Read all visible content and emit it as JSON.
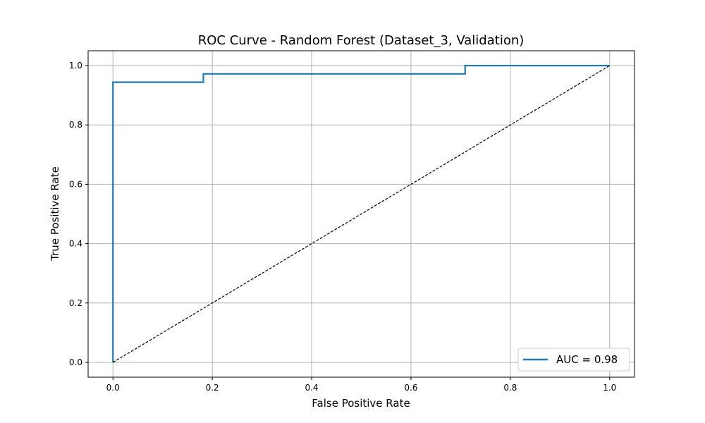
{
  "chart_data": {
    "type": "line",
    "title": "ROC Curve - Random Forest (Dataset_3, Validation)",
    "xlabel": "False Positive Rate",
    "ylabel": "True Positive Rate",
    "xlim": [
      -0.05,
      1.05
    ],
    "ylim": [
      -0.05,
      1.05
    ],
    "xticks": [
      0.0,
      0.2,
      0.4,
      0.6,
      0.8,
      1.0
    ],
    "yticks": [
      0.0,
      0.2,
      0.4,
      0.6,
      0.8,
      1.0
    ],
    "xtick_labels": [
      "0.0",
      "0.2",
      "0.4",
      "0.6",
      "0.8",
      "1.0"
    ],
    "ytick_labels": [
      "0.0",
      "0.2",
      "0.4",
      "0.6",
      "0.8",
      "1.0"
    ],
    "grid": true,
    "legend_position": "lower-right",
    "series": [
      {
        "name": "AUC = 0.98",
        "color": "#1f77b4",
        "style": "step",
        "x": [
          0.0,
          0.0,
          0.182,
          0.182,
          0.709,
          0.709,
          1.0
        ],
        "y": [
          0.0,
          0.944,
          0.944,
          0.972,
          0.972,
          1.0,
          1.0
        ]
      },
      {
        "style": "dashed",
        "color": "#000000",
        "x": [
          0.0,
          1.0
        ],
        "y": [
          0.0,
          1.0
        ]
      }
    ]
  }
}
